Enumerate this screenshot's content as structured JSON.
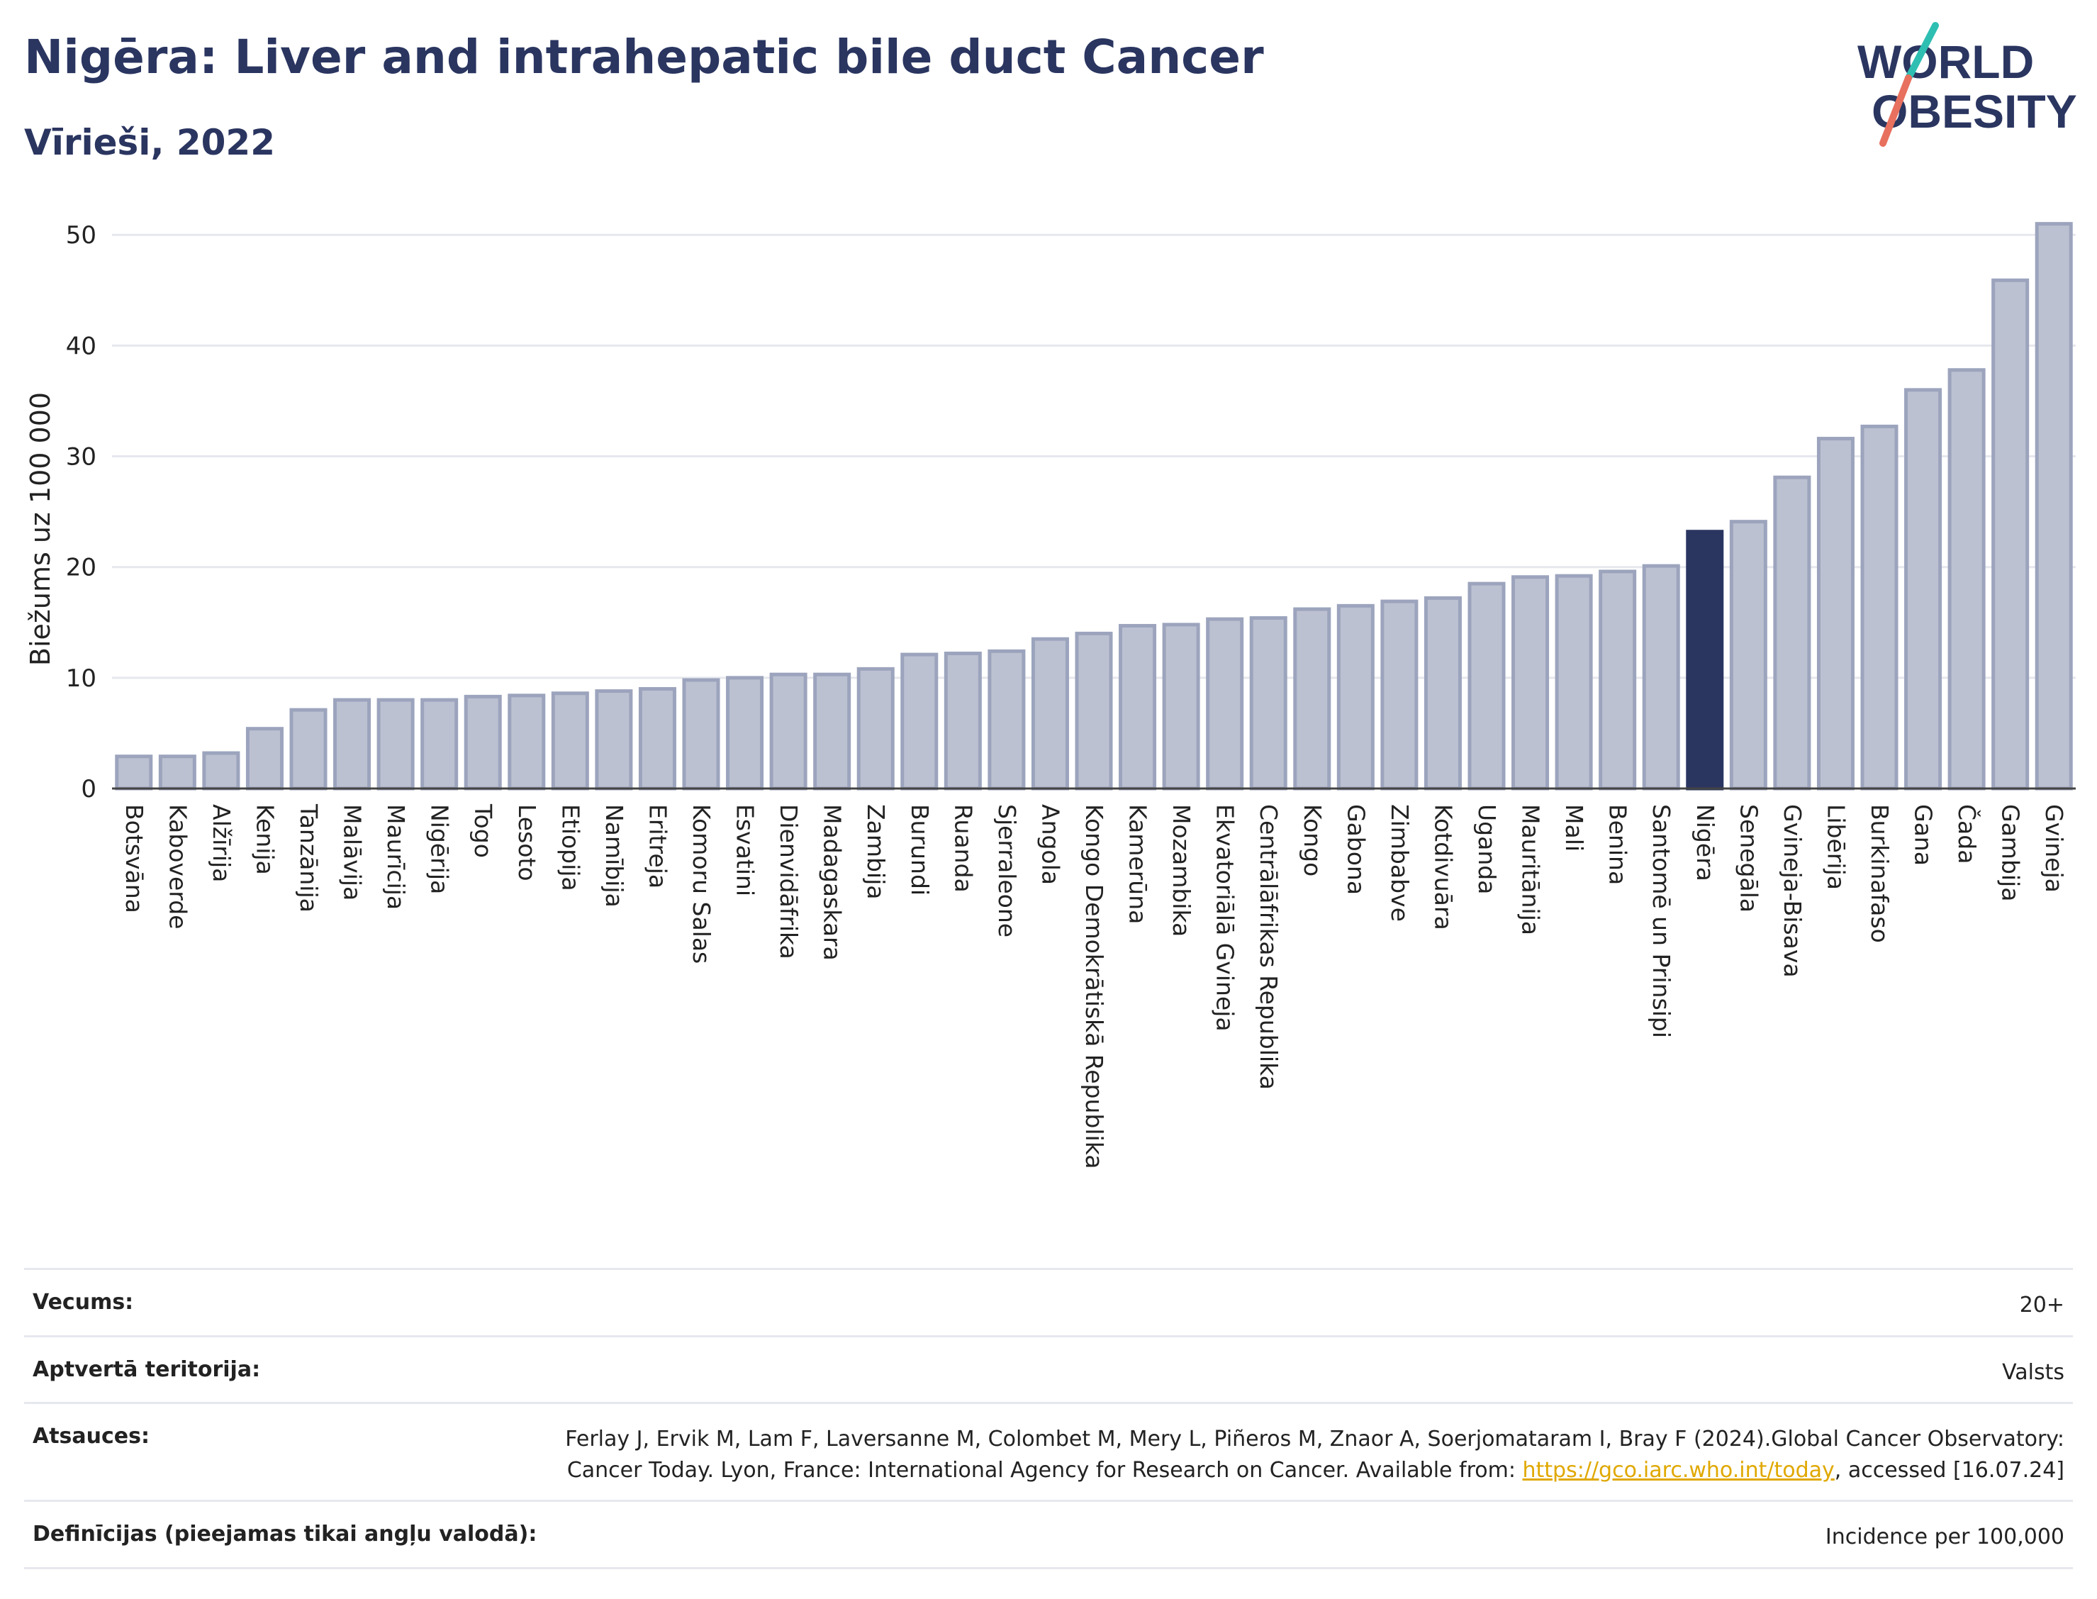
{
  "header": {
    "title": "Nigēra: Liver and intrahepatic bile duct Cancer",
    "subtitle": "Vīrieši, 2022",
    "logo_line1": "WORLD",
    "logo_line2": "OBESITY"
  },
  "chart_data": {
    "type": "bar",
    "ylabel": "Biežums uz 100 000",
    "ylim": [
      0,
      52
    ],
    "yticks": [
      0,
      10,
      20,
      30,
      40,
      50
    ],
    "grid": true,
    "highlight": "Nigēra",
    "colors": {
      "bar": "#bcc1d1",
      "bar_border": "#9ca4bd",
      "highlight": "#2a3560",
      "grid": "#e6e8ee"
    },
    "categories": [
      "Botsvāna",
      "Kaboverde",
      "Alžīrija",
      "Kenija",
      "Tanzānija",
      "Malāvija",
      "Maurīcija",
      "Nigērija",
      "Togo",
      "Lesoto",
      "Etiopija",
      "Namībija",
      "Eritreja",
      "Komoru Salas",
      "Esvatini",
      "Dienvidāfrika",
      "Madagaskara",
      "Zambija",
      "Burundi",
      "Ruanda",
      "Sjerraleone",
      "Angola",
      "Kongo Demokrātiskā Republika",
      "Kamerūna",
      "Mozambika",
      "Ekvatoriālā Gvineja",
      "Centrālāfrikas Republika",
      "Kongo",
      "Gabona",
      "Zimbabve",
      "Kotdivuāra",
      "Uganda",
      "Mauritānija",
      "Mali",
      "Benina",
      "Santomē un Prinsipi",
      "Nigēra",
      "Senegāla",
      "Gvineja-Bisava",
      "Libērija",
      "Burkinafaso",
      "Gana",
      "Čada",
      "Gambija",
      "Gvineja"
    ],
    "values": [
      2.9,
      2.9,
      3.2,
      5.4,
      7.1,
      8.0,
      8.0,
      8.0,
      8.3,
      8.4,
      8.6,
      8.8,
      9.0,
      9.8,
      10.0,
      10.3,
      10.3,
      10.8,
      12.1,
      12.2,
      12.4,
      13.5,
      14.0,
      14.7,
      14.8,
      15.3,
      15.4,
      16.2,
      16.5,
      16.9,
      17.2,
      18.5,
      19.1,
      19.2,
      19.6,
      20.1,
      23.2,
      24.1,
      28.1,
      31.6,
      32.7,
      36.0,
      37.8,
      45.9,
      51.0
    ]
  },
  "meta": {
    "rows": [
      {
        "label": "Vecums:",
        "value": "20+"
      },
      {
        "label": "Aptvertā teritorija:",
        "value": "Valsts"
      },
      {
        "label": "Atsauces:",
        "value_pre": "Ferlay J, Ervik M, Lam F, Laversanne M, Colombet M, Mery L, Piñeros M, Znaor A, Soerjomataram I, Bray F (2024).Global Cancer Observatory: Cancer Today. Lyon, France: International Agency for Research on Cancer. Available from: ",
        "link": "https://gco.iarc.who.int/today",
        "value_post": ", accessed [16.07.24]"
      },
      {
        "label": "Definīcijas (pieejamas tikai angļu valodā):",
        "value": "Incidence per 100,000"
      }
    ]
  }
}
